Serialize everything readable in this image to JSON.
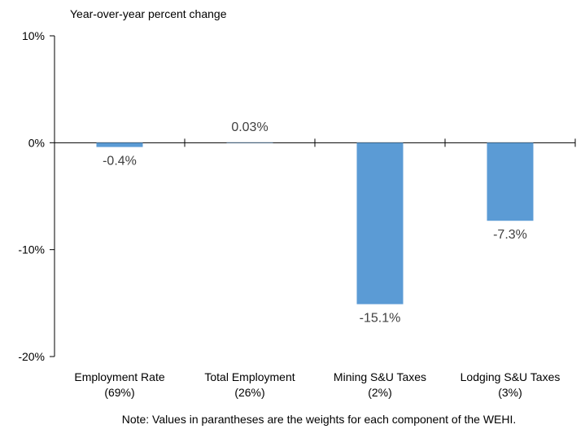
{
  "chart_data": {
    "type": "bar",
    "title": "",
    "ylabel": "Year-over-year percent change",
    "xlabel": "",
    "categories": [
      [
        "Employment Rate",
        "(69%)"
      ],
      [
        "Total Employment",
        "(26%)"
      ],
      [
        "Mining S&U Taxes",
        "(2%)"
      ],
      [
        "Lodging S&U Taxes",
        "(3%)"
      ]
    ],
    "values": [
      -0.4,
      0.03,
      -15.1,
      -7.3
    ],
    "value_labels": [
      "-0.4%",
      "0.03%",
      "-15.1%",
      "-7.3%"
    ],
    "ylim": [
      -20,
      10
    ],
    "yticks": [
      10,
      0,
      -10,
      -20
    ],
    "ytick_labels": [
      "10%",
      "0%",
      "-10%",
      "-20%"
    ],
    "grid": false,
    "legend": "none",
    "bar_color": "#5b9bd5",
    "axis_color": "#000000",
    "note": "Note: Values in parantheses are the weights for each component of the WEHI."
  }
}
